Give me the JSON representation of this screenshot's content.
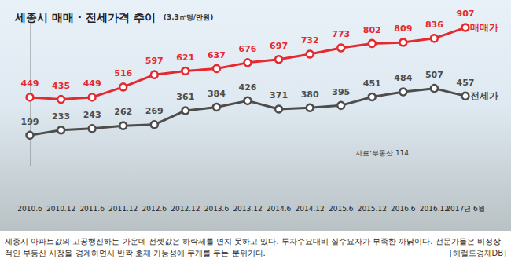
{
  "chart_data": {
    "type": "line",
    "title": "세종시 매매 · 전세가격 추이",
    "unit": "(3.3㎡당/만원)",
    "source": "자료:부동산 114",
    "caption": "세종시 아파트값의 고공행진하는 가운데 전셋값은 하락세를 면치 못하고 있다. 투자수요대비 실수요자가 부족한 까닭이다. 전문가들은 비정상적인 부동산 시장을 경계하면서 반짝 호재 가능성에 무게를 두는 분위기다.",
    "credit": "[헤럴드경제DB]",
    "categories": [
      "2010.6",
      "2010.12",
      "2011.6",
      "2011.12",
      "2012.6",
      "2012.12",
      "2013.6",
      "2013.12",
      "2014.6",
      "2014.12",
      "2015.6",
      "2015.12",
      "2016.6",
      "2016.12",
      "2017년 6월"
    ],
    "series": [
      {
        "name": "매매가",
        "color": "#e52a2f",
        "values": [
          449,
          435,
          449,
          516,
          597,
          621,
          637,
          676,
          697,
          732,
          773,
          802,
          809,
          836,
          907
        ]
      },
      {
        "name": "전세가",
        "color": "#4d4d4d",
        "values": [
          199,
          233,
          243,
          262,
          269,
          361,
          384,
          426,
          371,
          380,
          395,
          451,
          484,
          507,
          457
        ]
      }
    ],
    "ylim": [
      0,
      1000
    ],
    "grid": false,
    "data_labels": true,
    "tick_labels": "x",
    "marker": "circle",
    "line_style": "solid"
  }
}
